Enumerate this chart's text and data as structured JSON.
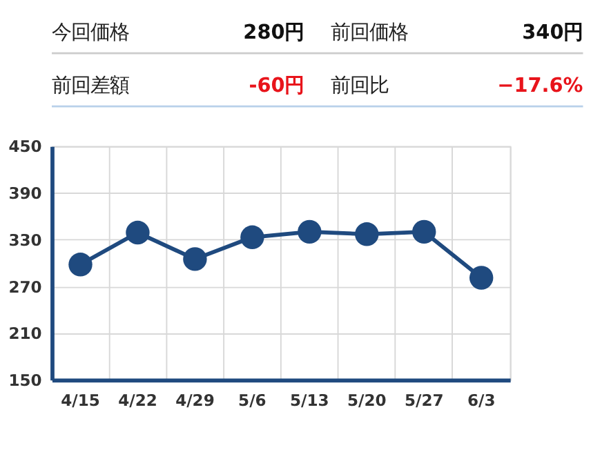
{
  "chart_data": [
    {
      "type": "other",
      "annotations": [
        "今回価格",
        "280円",
        "前回価格",
        "340円",
        "前回差額",
        "-60円",
        "前回比",
        "−17.6%"
      ],
      "colors": [
        "#222222",
        "#111111",
        "#222222",
        "#111111",
        "#222222",
        "#e8141b",
        "#222222",
        "#e8141b"
      ]
    },
    {
      "type": "line",
      "categories": [
        "4/15",
        "4/22",
        "4/29",
        "5/6",
        "5/13",
        "5/20",
        "5/27",
        "6/3"
      ],
      "values": [
        298,
        339,
        305,
        333,
        340,
        337,
        340,
        281
      ],
      "color": "#1f4a7f",
      "ylim": [
        150,
        450
      ],
      "yticks": [
        150,
        210,
        270,
        330,
        390,
        450
      ],
      "grid": true,
      "marker": "circle",
      "line_style": "solid"
    }
  ]
}
